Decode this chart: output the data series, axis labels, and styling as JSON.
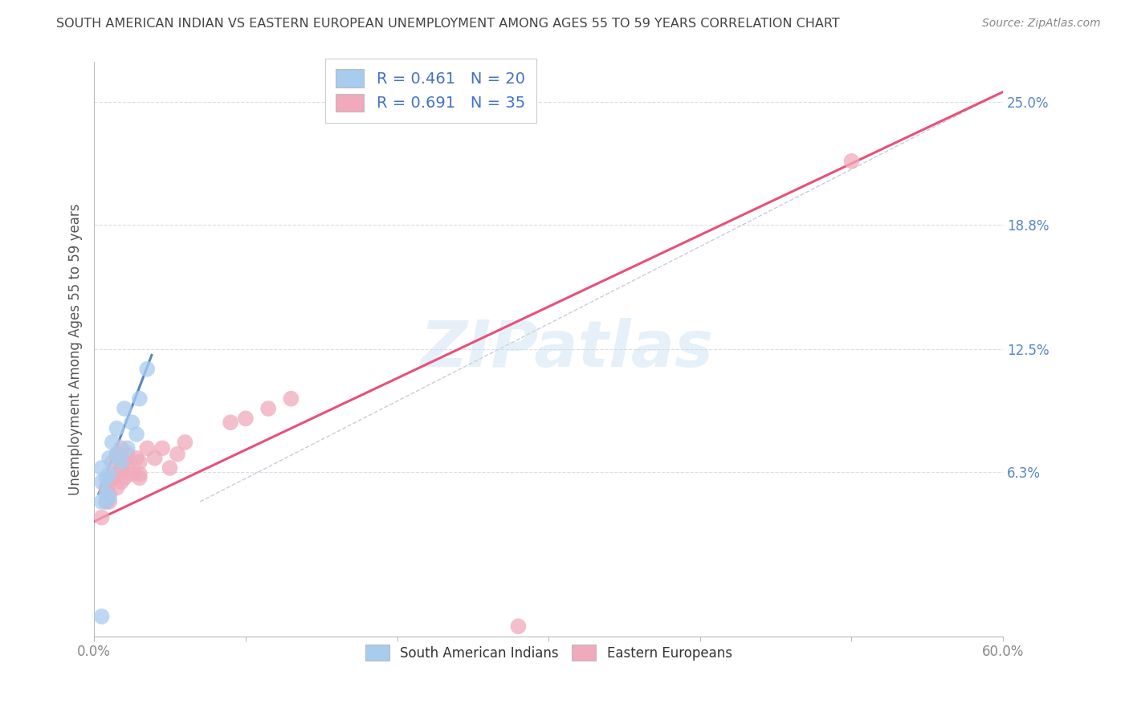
{
  "title": "SOUTH AMERICAN INDIAN VS EASTERN EUROPEAN UNEMPLOYMENT AMONG AGES 55 TO 59 YEARS CORRELATION CHART",
  "source": "Source: ZipAtlas.com",
  "ylabel": "Unemployment Among Ages 55 to 59 years",
  "xlim": [
    0.0,
    0.6
  ],
  "ylim": [
    -0.02,
    0.27
  ],
  "yticks_right": [
    0.063,
    0.125,
    0.188,
    0.25
  ],
  "yticks_right_labels": [
    "6.3%",
    "12.5%",
    "18.8%",
    "25.0%"
  ],
  "legend_r1": "R = 0.461",
  "legend_n1": "N = 20",
  "legend_r2": "R = 0.691",
  "legend_n2": "N = 35",
  "blue_color": "#A8CCEE",
  "pink_color": "#F0AABB",
  "blue_line_color": "#5585C8",
  "pink_line_color": "#E8507A",
  "blue_scatter_x": [
    0.005,
    0.005,
    0.005,
    0.008,
    0.008,
    0.01,
    0.01,
    0.01,
    0.012,
    0.015,
    0.015,
    0.018,
    0.02,
    0.022,
    0.025,
    0.028,
    0.03,
    0.035,
    0.005,
    0.008
  ],
  "blue_scatter_y": [
    0.048,
    0.058,
    0.065,
    0.052,
    0.06,
    0.05,
    0.062,
    0.07,
    0.078,
    0.072,
    0.085,
    0.068,
    0.095,
    0.075,
    0.088,
    0.082,
    0.1,
    0.115,
    -0.01,
    0.048
  ],
  "blue_trend_x": [
    0.003,
    0.038
  ],
  "blue_trend_y": [
    0.052,
    0.122
  ],
  "pink_scatter_x": [
    0.005,
    0.008,
    0.008,
    0.01,
    0.01,
    0.01,
    0.012,
    0.012,
    0.015,
    0.015,
    0.015,
    0.018,
    0.018,
    0.018,
    0.02,
    0.02,
    0.022,
    0.022,
    0.025,
    0.028,
    0.03,
    0.03,
    0.03,
    0.035,
    0.04,
    0.045,
    0.05,
    0.055,
    0.06,
    0.09,
    0.1,
    0.115,
    0.13,
    0.5,
    0.28
  ],
  "pink_scatter_y": [
    0.04,
    0.048,
    0.055,
    0.052,
    0.058,
    0.048,
    0.06,
    0.068,
    0.055,
    0.062,
    0.072,
    0.058,
    0.065,
    0.075,
    0.06,
    0.068,
    0.065,
    0.072,
    0.062,
    0.07,
    0.062,
    0.068,
    0.06,
    0.075,
    0.07,
    0.075,
    0.065,
    0.072,
    0.078,
    0.088,
    0.09,
    0.095,
    0.1,
    0.22,
    -0.015
  ],
  "pink_trend_x": [
    0.0,
    0.6
  ],
  "pink_trend_y": [
    0.038,
    0.255
  ],
  "ref_line_x": [
    0.07,
    0.6
  ],
  "ref_line_y": [
    0.048,
    0.255
  ],
  "bg_color": "#FFFFFF",
  "grid_color": "#CCCCCC",
  "title_color": "#444444",
  "source_color": "#888888",
  "axis_label_color": "#555555",
  "tick_label_color": "#888888",
  "right_tick_color": "#5585C8",
  "legend_text_color": "#333333",
  "legend_rn_color": "#4472C4",
  "bottom_legend_label1": "South American Indians",
  "bottom_legend_label2": "Eastern Europeans"
}
